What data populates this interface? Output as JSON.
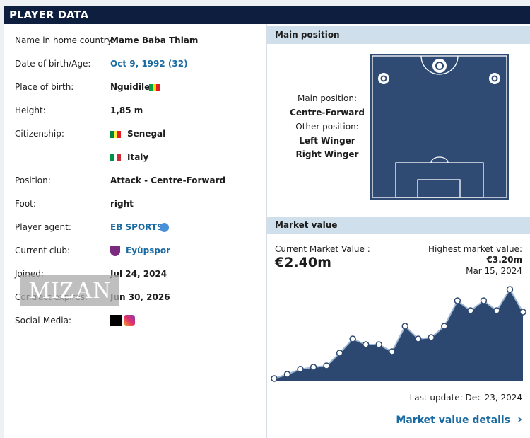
{
  "header": {
    "title": "PLAYER DATA"
  },
  "details": {
    "rows": [
      [
        "Name in home country:",
        "Mame Baba Thiam"
      ],
      [
        "Date of birth/Age:",
        "Oct 9, 1992 (32)"
      ],
      [
        "Place of birth:",
        "Nguidile"
      ],
      [
        "Height:",
        "1,85 m"
      ],
      [
        "Citizenship:",
        "Senegal"
      ],
      [
        null,
        "Italy"
      ],
      [
        "Position:",
        "Attack - Centre-Forward"
      ],
      [
        "Foot:",
        "right"
      ],
      [
        "Player agent:",
        "EB SPORTS"
      ],
      [
        "Current club:",
        "Eyüpspor"
      ],
      [
        "Joined:",
        "Jul 24, 2024"
      ],
      [
        "Contract expires:",
        "Jun 30, 2026"
      ],
      [
        "Social-Media:",
        null
      ]
    ]
  },
  "watermark": "MIZAN",
  "main_position": {
    "title": "Main position",
    "main_label": "Main position:",
    "main": "Centre-Forward",
    "other_label": "Other position:",
    "others": [
      "Left Winger",
      "Right Winger"
    ]
  },
  "market_value": {
    "title": "Market value",
    "current_label": "Current Market Value :",
    "current": "€2.40m",
    "highest_label": "Highest market value:",
    "highest": "€3.20m",
    "highest_date": "Mar 15, 2024",
    "last_update": "Last update: Dec 23, 2024",
    "details_link": "Market value details",
    "chart": {
      "type": "line",
      "values": [
        0.05,
        0.2,
        0.38,
        0.45,
        0.5,
        0.95,
        1.45,
        1.25,
        1.25,
        1.0,
        1.9,
        1.45,
        1.5,
        1.9,
        2.8,
        2.45,
        2.8,
        2.45,
        3.2,
        2.4
      ]
    }
  }
}
